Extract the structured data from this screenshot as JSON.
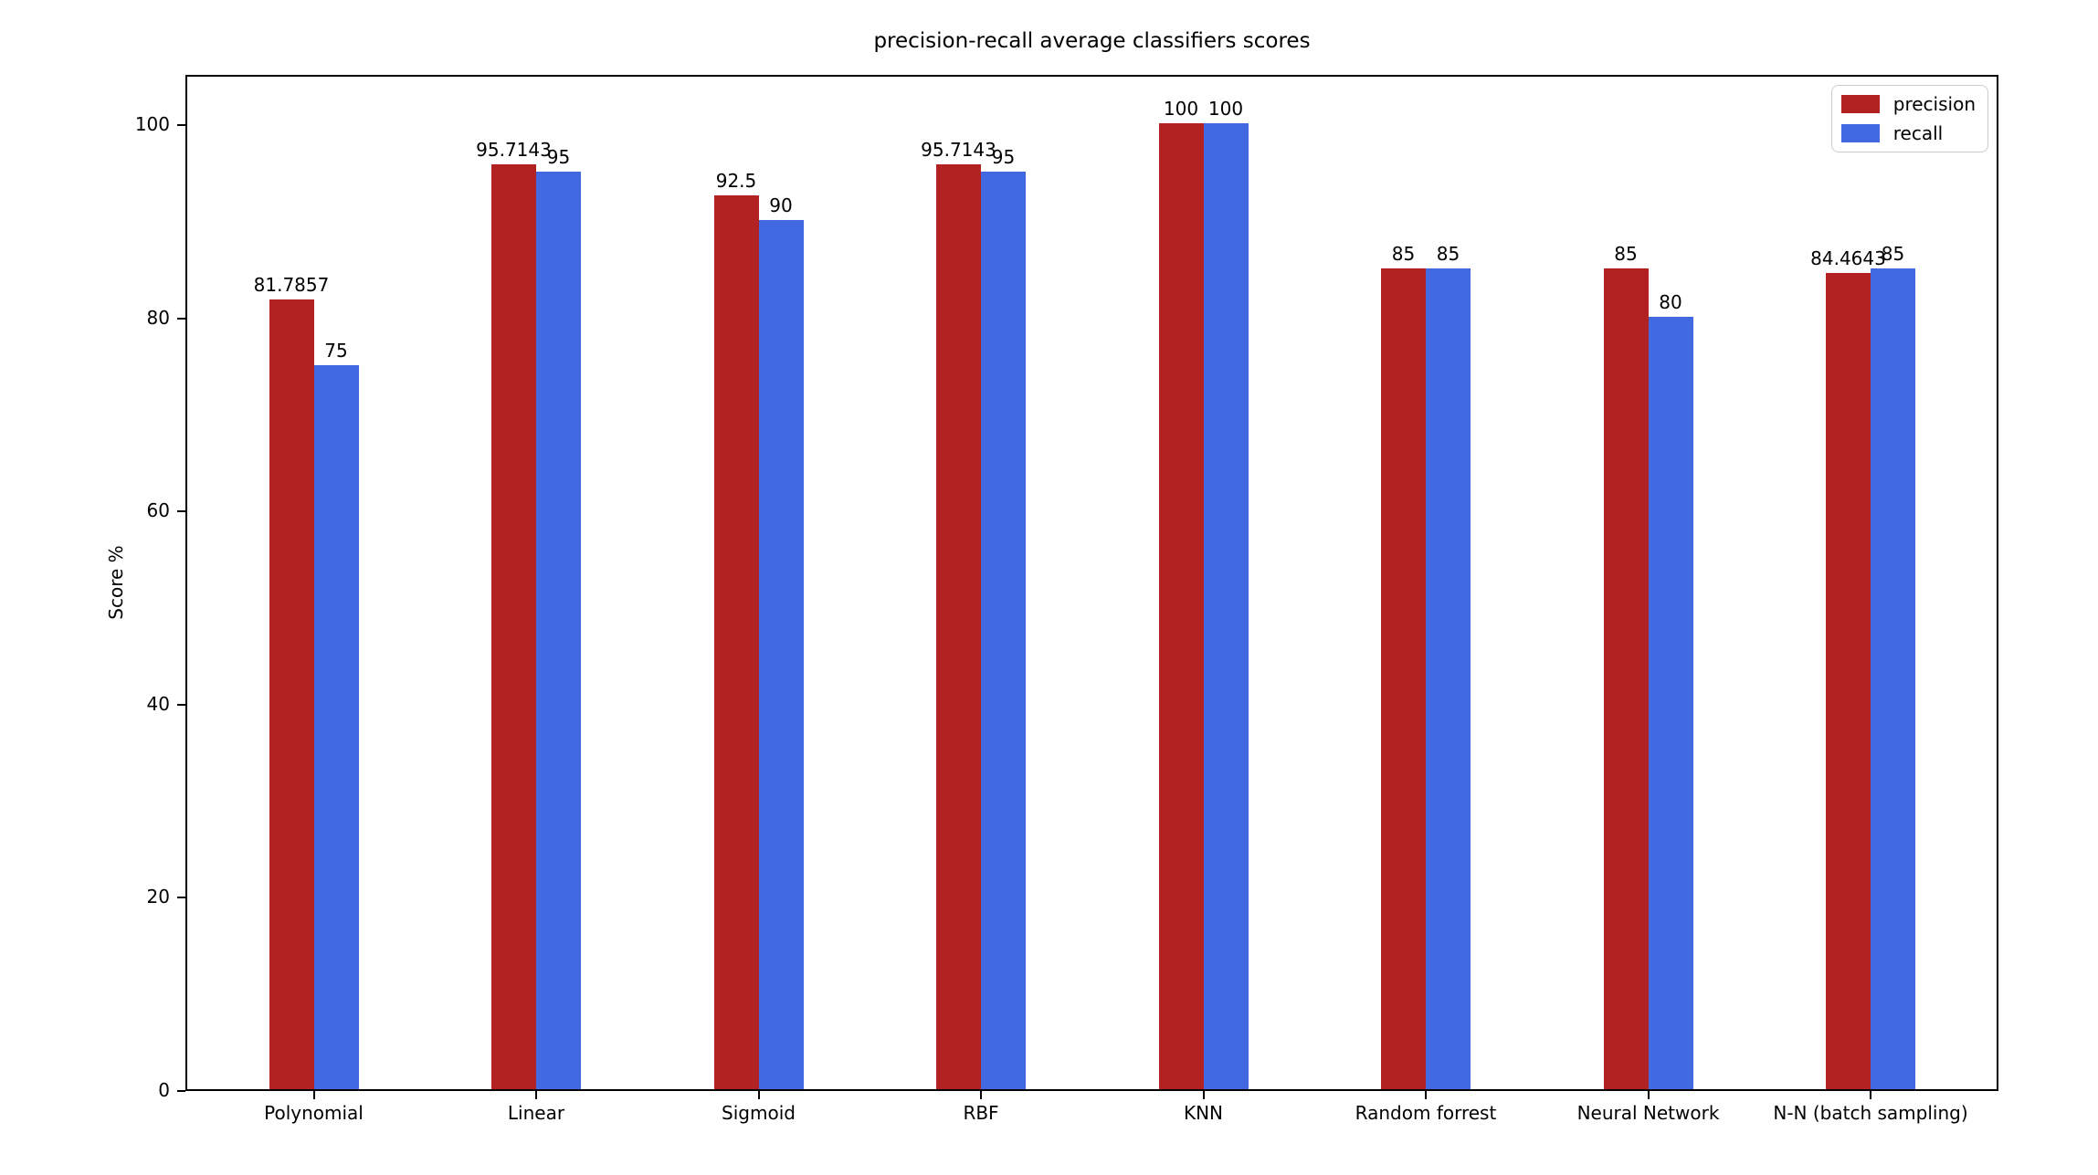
{
  "chart_data": {
    "type": "bar",
    "title": "precision-recall average classifiers scores",
    "xlabel": "",
    "ylabel": "Score %",
    "categories": [
      "Polynomial",
      "Linear",
      "Sigmoid",
      "RBF",
      "KNN",
      "Random forrest",
      "Neural Network",
      "N-N (batch sampling)"
    ],
    "series": [
      {
        "name": "precision",
        "color": "#b22222",
        "values": [
          81.7857,
          95.7143,
          92.5,
          95.7143,
          100,
          85,
          85,
          84.4643
        ],
        "labels": [
          "81.7857",
          "95.7143",
          "92.5",
          "95.7143",
          "100",
          "85",
          "85",
          "84.4643"
        ]
      },
      {
        "name": "recall",
        "color": "#4169e1",
        "values": [
          75,
          95,
          90,
          95,
          100,
          85,
          80,
          85
        ],
        "labels": [
          "75",
          "95",
          "90",
          "95",
          "100",
          "85",
          "80",
          "85"
        ]
      }
    ],
    "yticks": [
      0,
      20,
      40,
      60,
      80,
      100
    ],
    "ylim": [
      0,
      105.2
    ],
    "grid": false,
    "legend_position": "upper right"
  }
}
